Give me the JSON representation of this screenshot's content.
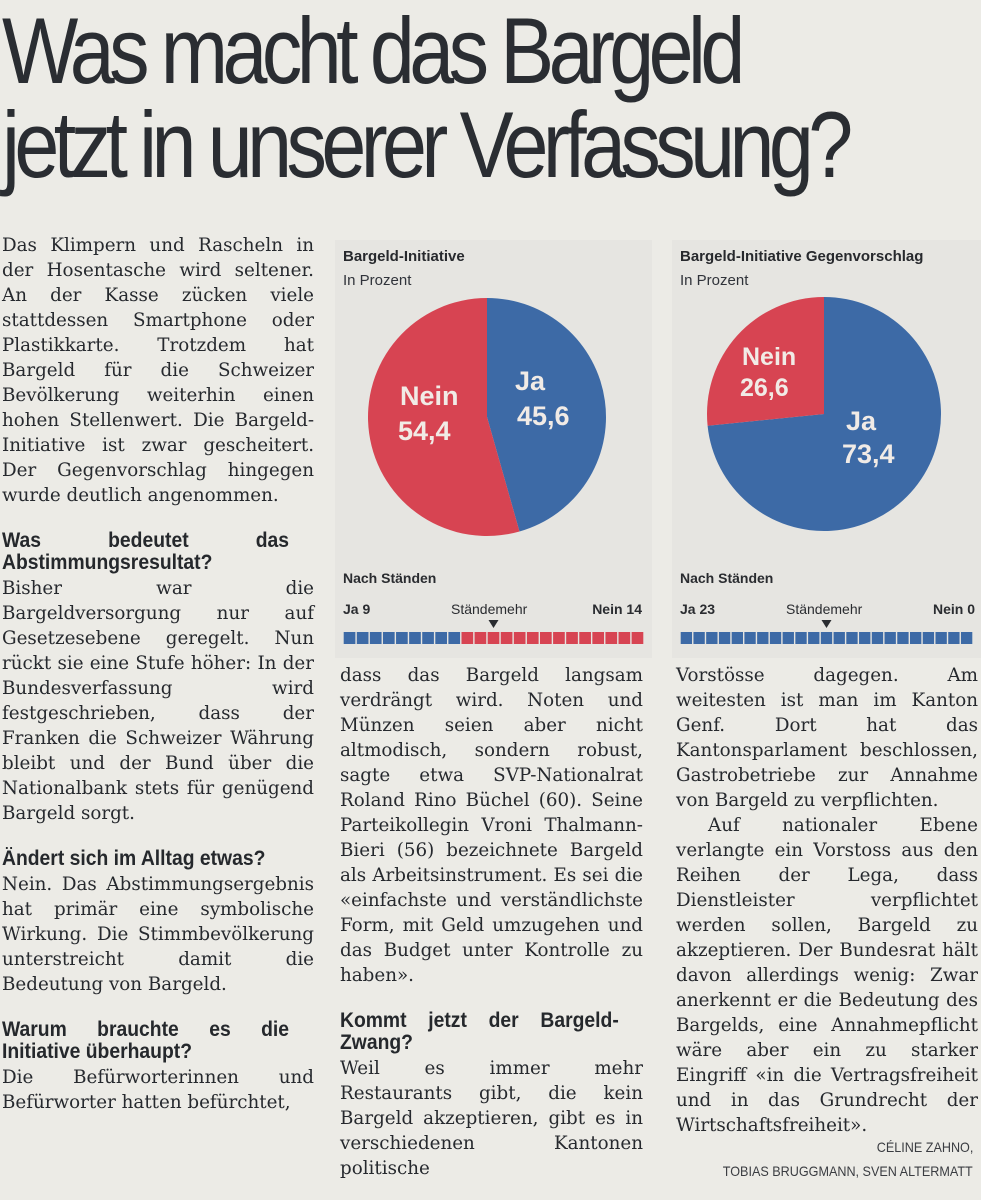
{
  "headline": {
    "line1": "Was macht das Bargeld",
    "line2": "jetzt in unserer Verfassung?"
  },
  "column1": {
    "intro": "Das Klimpern und Rascheln in der Hosentasche wird seltener. An der Kasse zücken viele stattdessen Smartphone oder Plastikkarte. Trotzdem hat Bargeld für die Schweizer Bevölkerung weiterhin einen hohen Stellenwert. Die Bargeld-Initiative ist zwar gescheitert. Der Gegenvorschlag hingegen wurde deutlich angenommen.",
    "q1": "Was bedeutet das Abstimmungsresultat?",
    "a1": "Bisher war die Bargeldversorgung nur auf Gesetzesebene geregelt. Nun rückt sie eine Stufe höher: In der Bundesverfassung wird festgeschrieben, dass der Franken die Schweizer Währung bleibt und der Bund über die Nationalbank stets für genügend Bargeld sorgt.",
    "q2": "Ändert sich im Alltag etwas?",
    "a2": "Nein. Das Abstimmungsergebnis hat primär eine symbolische Wirkung. Die Stimmbevölkerung unterstreicht damit die Bedeutung von Bargeld.",
    "q3": "Warum brauchte es die Initiative überhaupt?",
    "a3": "Die Befürworterinnen und Befürworter hatten befürchtet,"
  },
  "column2": {
    "p1": "dass das Bargeld langsam verdrängt wird. Noten und Münzen seien aber nicht altmodisch, sondern robust, sagte etwa SVP-Nationalrat Roland Rino Büchel (60). Seine Parteikollegin Vroni Thalmann-Bieri (56) bezeichnete Bargeld als Arbeitsinstrument. Es sei die «einfachste und verständlichste Form, mit Geld umzugehen und das Budget unter Kontrolle zu haben».",
    "q4": "Kommt jetzt der Bargeld-Zwang?",
    "a4": "Weil es immer mehr Restaurants gibt, die kein Bargeld akzeptieren, gibt es in verschiedenen Kantonen politische"
  },
  "column3": {
    "p1": "Vorstösse dagegen. Am weitesten ist man im Kanton Genf. Dort hat das Kantonsparlament beschlossen, Gastrobetriebe zur Annahme von Bargeld zu verpflichten.",
    "p2": "Auf nationaler Ebene verlangte ein Vorstoss aus den Reihen der Lega, dass Dienstleister verpflichtet werden sollen, Bargeld zu akzeptieren. Der Bundesrat hält davon allerdings wenig: Zwar anerkennt er die Bedeutung des Bargelds, eine Annahmepflicht wäre aber ein zu starker Eingriff «in die Vertragsfreiheit und in das Grundrecht der Wirtschaftsfreiheit».",
    "credit1": "CÉLINE ZAHNO,",
    "credit2": "TOBIAS BRUGGMANN, SVEN ALTERMATT"
  },
  "colors": {
    "ja": "#3d6aa6",
    "nein": "#d74452",
    "panel": "#e6e5e1"
  },
  "chart_data": [
    {
      "type": "pie",
      "title": "Bargeld-Initiative",
      "subtitle": "In Prozent",
      "slices": [
        {
          "label": "Ja",
          "value": 45.6,
          "display": "45,6"
        },
        {
          "label": "Nein",
          "value": 54.4,
          "display": "54,4"
        }
      ],
      "staende": {
        "heading": "Nach Ständen",
        "ja_label": "Ja 9",
        "nein_label": "Nein 14",
        "mehr_label": "Ständemehr",
        "ja": 9,
        "nein": 14
      }
    },
    {
      "type": "pie",
      "title": "Bargeld-Initiative Gegenvorschlag",
      "subtitle": "In Prozent",
      "slices": [
        {
          "label": "Ja",
          "value": 73.4,
          "display": "73,4"
        },
        {
          "label": "Nein",
          "value": 26.6,
          "display": "26,6"
        }
      ],
      "staende": {
        "heading": "Nach Ständen",
        "ja_label": "Ja 23",
        "nein_label": "Nein 0",
        "mehr_label": "Ständemehr",
        "ja": 23,
        "nein": 0
      }
    }
  ]
}
